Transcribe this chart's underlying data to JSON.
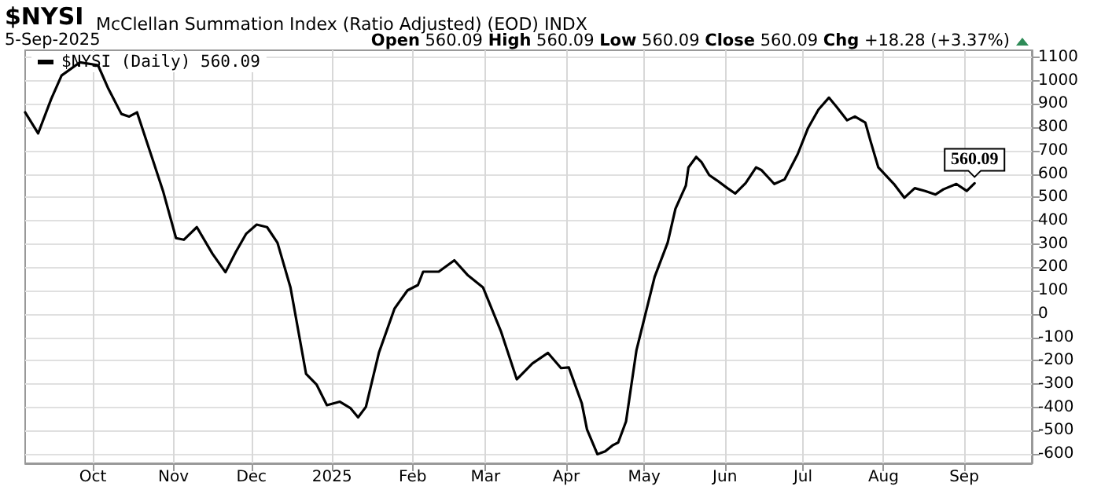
{
  "chart_data": {
    "type": "line",
    "title": "$NYSI",
    "subtitle": "McClellan Summation Index (Ratio Adjusted) (EOD) INDX",
    "annotations": [
      "5-Sep-2025",
      "Open 560.09 High 560.09 Low 560.09 Close 560.09 Chg +18.28 (+3.37%)",
      {
        "text": "560.09",
        "x": "2025-09-05",
        "y": 560
      }
    ],
    "x": [
      "2024-09-05",
      "2024-09-10",
      "2024-09-15",
      "2024-09-19",
      "2024-09-26",
      "2024-10-03",
      "2024-10-07",
      "2024-10-12",
      "2024-10-15",
      "2024-10-18",
      "2024-10-24",
      "2024-10-28",
      "2024-11-02",
      "2024-11-05",
      "2024-11-10",
      "2024-11-16",
      "2024-11-21",
      "2024-11-25",
      "2024-11-29",
      "2024-12-03",
      "2024-12-07",
      "2024-12-11",
      "2024-12-16",
      "2024-12-22",
      "2024-12-26",
      "2024-12-30",
      "2025-01-04",
      "2025-01-08",
      "2025-01-11",
      "2025-01-14",
      "2025-01-19",
      "2025-01-25",
      "2025-01-30",
      "2025-02-03",
      "2025-02-05",
      "2025-02-11",
      "2025-02-17",
      "2025-02-22",
      "2025-02-28",
      "2025-03-07",
      "2025-03-13",
      "2025-03-19",
      "2025-03-25",
      "2025-03-30",
      "2025-04-02",
      "2025-04-07",
      "2025-04-09",
      "2025-04-13",
      "2025-04-16",
      "2025-04-19",
      "2025-04-21",
      "2025-04-24",
      "2025-04-28",
      "2025-05-01",
      "2025-05-05",
      "2025-05-10",
      "2025-05-13",
      "2025-05-17",
      "2025-05-18",
      "2025-05-21",
      "2025-05-23",
      "2025-05-26",
      "2025-05-29",
      "2025-06-02",
      "2025-06-05",
      "2025-06-09",
      "2025-06-13",
      "2025-06-15",
      "2025-06-20",
      "2025-06-24",
      "2025-06-29",
      "2025-07-03",
      "2025-07-07",
      "2025-07-11",
      "2025-07-14",
      "2025-07-18",
      "2025-07-21",
      "2025-07-25",
      "2025-07-27",
      "2025-07-30",
      "2025-08-05",
      "2025-08-09",
      "2025-08-13",
      "2025-08-17",
      "2025-08-21",
      "2025-08-24",
      "2025-08-29",
      "2025-09-02",
      "2025-09-05"
    ],
    "series": [
      {
        "name": "$NYSI (Daily) 560.09",
        "color": "#000000",
        "values": [
          864,
          774,
          921,
          1022,
          1078,
          1066,
          965,
          857,
          846,
          864,
          662,
          527,
          325,
          318,
          372,
          258,
          179,
          266,
          344,
          383,
          372,
          305,
          114,
          -257,
          -302,
          -391,
          -376,
          -403,
          -443,
          -398,
          -166,
          23,
          101,
          124,
          181,
          181,
          230,
          168,
          114,
          -77,
          -280,
          -212,
          -167,
          -232,
          -229,
          -383,
          -495,
          -601,
          -589,
          -562,
          -551,
          -461,
          -156,
          -21,
          159,
          305,
          451,
          550,
          628,
          673,
          651,
          595,
          572,
          539,
          516,
          561,
          628,
          617,
          557,
          577,
          685,
          797,
          876,
          927,
          887,
          830,
          846,
          820,
          741,
          628,
          557,
          498,
          539,
          527,
          512,
          534,
          557,
          527,
          560
        ]
      }
    ],
    "xlim": [
      "2024-09-05",
      "2025-09-27"
    ],
    "xticks": [
      {
        "value": "2024-10-01",
        "label": "Oct"
      },
      {
        "value": "2024-11-01",
        "label": "Nov"
      },
      {
        "value": "2024-12-01",
        "label": "Dec"
      },
      {
        "value": "2025-01-01",
        "label": "2025"
      },
      {
        "value": "2025-02-01",
        "label": "Feb"
      },
      {
        "value": "2025-03-01",
        "label": "Mar"
      },
      {
        "value": "2025-04-01",
        "label": "Apr"
      },
      {
        "value": "2025-05-01",
        "label": "May"
      },
      {
        "value": "2025-06-01",
        "label": "Jun"
      },
      {
        "value": "2025-07-01",
        "label": "Jul"
      },
      {
        "value": "2025-08-01",
        "label": "Aug"
      },
      {
        "value": "2025-09-01",
        "label": "Sep"
      }
    ],
    "ylim": [
      -640,
      1130
    ],
    "yticks": [
      -600,
      -500,
      -400,
      -300,
      -200,
      -100,
      0,
      100,
      200,
      300,
      400,
      500,
      600,
      700,
      800,
      900,
      1000,
      1100
    ],
    "grid": true,
    "legend": "top left",
    "marker": "none",
    "line_style": "solid"
  }
}
